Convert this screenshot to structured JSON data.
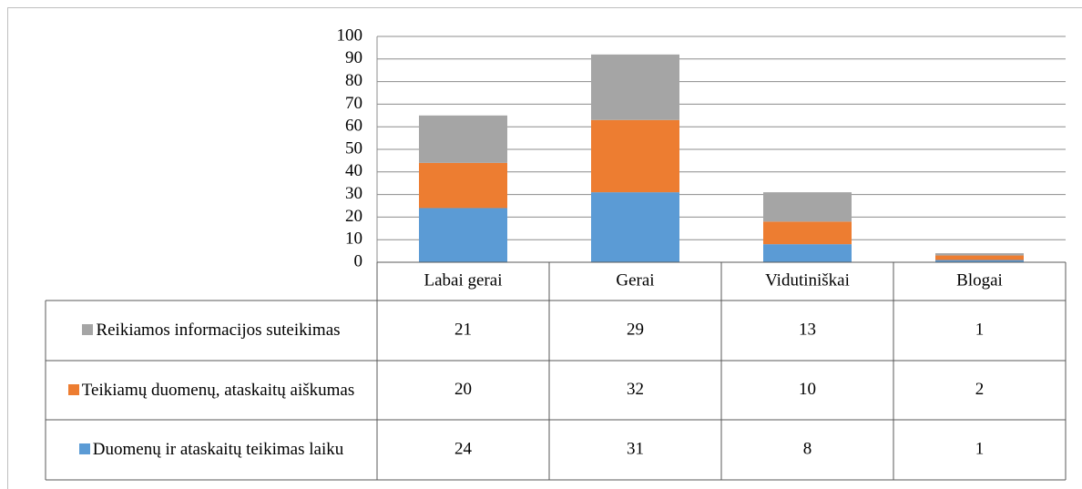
{
  "chart_data": {
    "type": "stacked_bar",
    "categories": [
      "Labai gerai",
      "Gerai",
      "Vidutiniškai",
      "Blogai"
    ],
    "series": [
      {
        "name": "Duomenų ir ataskaitų teikimas laiku",
        "color": "#5b9bd5",
        "values": [
          24,
          31,
          8,
          1
        ]
      },
      {
        "name": "Teikiamų duomenų, ataskaitų aiškumas",
        "color": "#ed7d31",
        "values": [
          20,
          32,
          10,
          2
        ]
      },
      {
        "name": "Reikiamos informacijos suteikimas",
        "color": "#a5a5a5",
        "values": [
          21,
          29,
          13,
          1
        ]
      }
    ],
    "ylim": [
      0,
      100
    ],
    "yticks": [
      0,
      10,
      20,
      30,
      40,
      50,
      60,
      70,
      80,
      90,
      100
    ],
    "grid": true,
    "data_table": true
  }
}
